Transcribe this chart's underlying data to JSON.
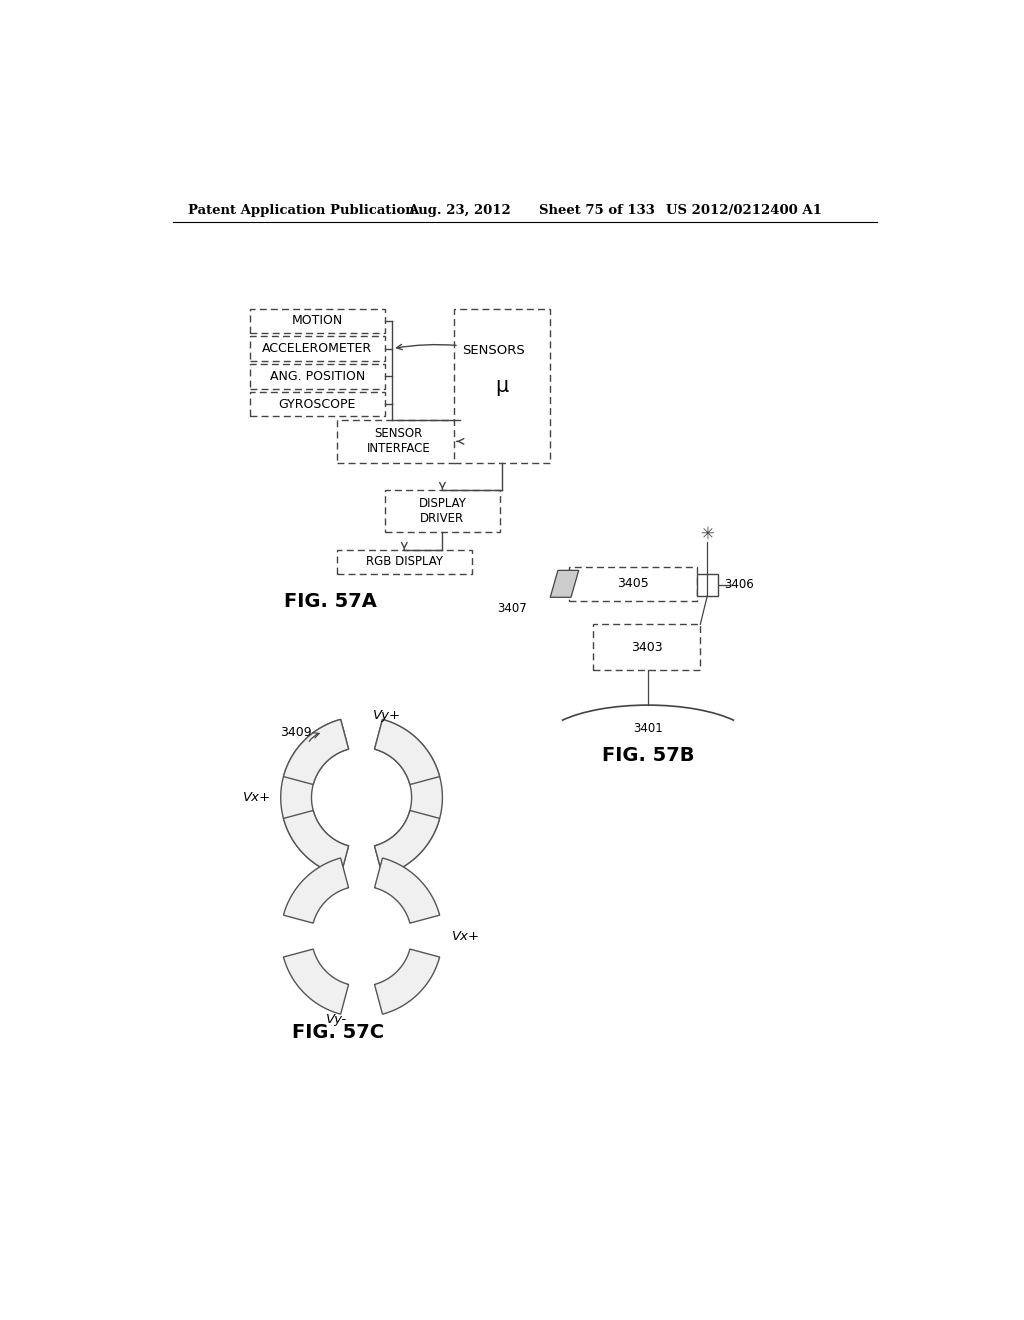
{
  "bg_color": "#ffffff",
  "header_text": "Patent Application Publication",
  "header_date": "Aug. 23, 2012",
  "header_sheet": "Sheet 75 of 133",
  "header_patent": "US 2012/0212400 A1",
  "fig57a_label": "FIG. 57A",
  "fig57b_label": "FIG. 57B",
  "fig57c_label": "FIG. 57C",
  "sensors_label": "SENSORS",
  "ref_3401": "3401",
  "ref_3403": "3403",
  "ref_3405": "3405",
  "ref_3406": "3406",
  "ref_3407": "3407",
  "ref_3409": "3409"
}
